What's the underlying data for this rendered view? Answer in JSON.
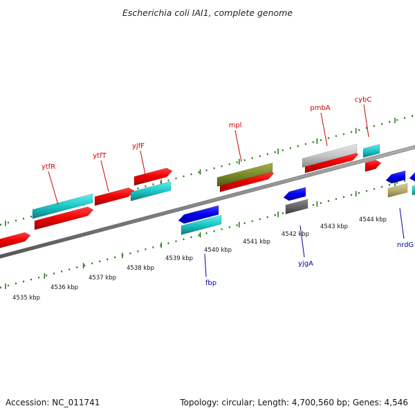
{
  "title": "Escherichia coli IAI1, complete genome",
  "footer": {
    "accession": "Accession: NC_011741",
    "summary": "Topology: circular; Length: 4,700,560 bp; Genes: 4,546"
  },
  "colors": {
    "forward_label": "#cc0000",
    "reverse_label": "#0000aa",
    "tick": "#2a7a1a",
    "backbone": "#888888"
  },
  "ruler": {
    "unit": "kbp",
    "labels": [
      "4535 kbp",
      "4536 kbp",
      "4537 kbp",
      "4538 kbp",
      "4539 kbp",
      "4540 kbp",
      "4541 kbp",
      "4542 kbp",
      "4543 kbp",
      "4544 kbp"
    ]
  },
  "genes_forward": [
    {
      "label": "ytfR",
      "color": "cyan"
    },
    {
      "label": "ytfT",
      "color": "red"
    },
    {
      "label": "yjfF",
      "color": "cyan"
    },
    {
      "label": "mpl",
      "color": "olive"
    },
    {
      "label": "pmbA",
      "color": "silver"
    },
    {
      "label": "cybC",
      "color": "cyan"
    }
  ],
  "genes_reverse": [
    {
      "label": "fbp",
      "color": "blue"
    },
    {
      "label": "yjgA",
      "color": "gray"
    },
    {
      "label": "nrdG",
      "color": "khaki"
    }
  ]
}
